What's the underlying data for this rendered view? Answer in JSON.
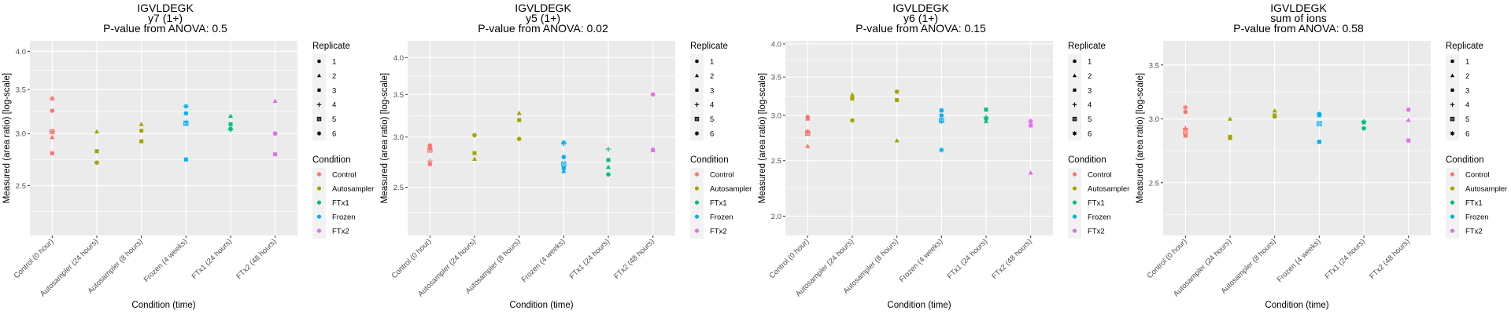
{
  "chart_data": [
    {
      "type": "scatter",
      "title": "IGVLDEGK",
      "subtitle": "y7 (1+)",
      "pvalue_text": "P-value from ANOVA: 0.5",
      "xlabel": "Condition (time)",
      "ylabel": "Measured (area ratio) [log-scale]",
      "ylim": [
        2.1,
        4.15
      ],
      "yticks": [
        "2.5",
        "3.0",
        "3.5",
        "4.0"
      ],
      "ytick_values": [
        2.5,
        3.0,
        3.5,
        4.0
      ],
      "grid": true,
      "categories": [
        "Control (0 hour)",
        "Autosampler (24 hours)",
        "Autosampler (8 hours)",
        "Frozen (4 weeks)",
        "FTx1 (24 hours)",
        "FTx2 (48 hours)"
      ],
      "points": [
        {
          "x": 0,
          "y": 3.25,
          "replicate": 1,
          "condition": "Control"
        },
        {
          "x": 0,
          "y": 2.96,
          "replicate": 2,
          "condition": "Control"
        },
        {
          "x": 0,
          "y": 2.8,
          "replicate": 3,
          "condition": "Control"
        },
        {
          "x": 0,
          "y": 3.02,
          "replicate": 4,
          "condition": "Control"
        },
        {
          "x": 0,
          "y": 3.02,
          "replicate": 5,
          "condition": "Control"
        },
        {
          "x": 0,
          "y": 3.39,
          "replicate": 6,
          "condition": "Control"
        },
        {
          "x": 1,
          "y": 2.71,
          "replicate": 1,
          "condition": "Autosampler"
        },
        {
          "x": 1,
          "y": 3.02,
          "replicate": 2,
          "condition": "Autosampler"
        },
        {
          "x": 1,
          "y": 2.82,
          "replicate": 3,
          "condition": "Autosampler"
        },
        {
          "x": 2,
          "y": 3.03,
          "replicate": 1,
          "condition": "Autosampler"
        },
        {
          "x": 2,
          "y": 3.1,
          "replicate": 2,
          "condition": "Autosampler"
        },
        {
          "x": 2,
          "y": 2.92,
          "replicate": 3,
          "condition": "Autosampler"
        },
        {
          "x": 3,
          "y": 3.22,
          "replicate": 1,
          "condition": "Frozen"
        },
        {
          "x": 3,
          "y": 2.74,
          "replicate": 3,
          "condition": "Frozen"
        },
        {
          "x": 3,
          "y": 3.12,
          "replicate": 4,
          "condition": "Frozen"
        },
        {
          "x": 3,
          "y": 3.11,
          "replicate": 5,
          "condition": "Frozen"
        },
        {
          "x": 3,
          "y": 3.3,
          "replicate": 6,
          "condition": "Frozen"
        },
        {
          "x": 4,
          "y": 3.05,
          "replicate": 1,
          "condition": "FTx1"
        },
        {
          "x": 4,
          "y": 3.19,
          "replicate": 2,
          "condition": "FTx1"
        },
        {
          "x": 4,
          "y": 3.1,
          "replicate": 3,
          "condition": "FTx1"
        },
        {
          "x": 4,
          "y": 3.04,
          "replicate": 4,
          "condition": "FTx1"
        },
        {
          "x": 5,
          "y": 3.0,
          "replicate": 1,
          "condition": "FTx2"
        },
        {
          "x": 5,
          "y": 3.36,
          "replicate": 2,
          "condition": "FTx2"
        },
        {
          "x": 5,
          "y": 2.79,
          "replicate": 3,
          "condition": "FTx2"
        }
      ]
    },
    {
      "type": "scatter",
      "title": "IGVLDEGK",
      "subtitle": "y5 (1+)",
      "pvalue_text": "P-value from ANOVA: 0.02",
      "xlabel": "Condition (time)",
      "ylabel": "Measured (area ratio) [log-scale]",
      "ylim": [
        2.1,
        4.25
      ],
      "yticks": [
        "2.5",
        "3.0",
        "3.5",
        "4.0"
      ],
      "ytick_values": [
        2.5,
        3.0,
        3.5,
        4.0
      ],
      "grid": true,
      "categories": [
        "Control (0 hour)",
        "Autosampler (24 hours)",
        "Autosampler (8 hours)",
        "Frozen (4 weeks)",
        "FTx1 (24 hours)",
        "FTx2 (48 hours)"
      ],
      "points": [
        {
          "x": 0,
          "y": 2.91,
          "replicate": 1,
          "condition": "Control"
        },
        {
          "x": 0,
          "y": 2.89,
          "replicate": 2,
          "condition": "Control"
        },
        {
          "x": 0,
          "y": 2.72,
          "replicate": 3,
          "condition": "Control"
        },
        {
          "x": 0,
          "y": 2.75,
          "replicate": 4,
          "condition": "Control"
        },
        {
          "x": 0,
          "y": 2.86,
          "replicate": 5,
          "condition": "Control"
        },
        {
          "x": 0,
          "y": 2.88,
          "replicate": 6,
          "condition": "Control"
        },
        {
          "x": 1,
          "y": 3.02,
          "replicate": 1,
          "condition": "Autosampler"
        },
        {
          "x": 1,
          "y": 2.77,
          "replicate": 2,
          "condition": "Autosampler"
        },
        {
          "x": 1,
          "y": 2.83,
          "replicate": 3,
          "condition": "Autosampler"
        },
        {
          "x": 2,
          "y": 2.98,
          "replicate": 1,
          "condition": "Autosampler"
        },
        {
          "x": 2,
          "y": 3.27,
          "replicate": 2,
          "condition": "Autosampler"
        },
        {
          "x": 2,
          "y": 3.19,
          "replicate": 3,
          "condition": "Autosampler"
        },
        {
          "x": 3,
          "y": 2.79,
          "replicate": 1,
          "condition": "Frozen"
        },
        {
          "x": 3,
          "y": 2.65,
          "replicate": 2,
          "condition": "Frozen"
        },
        {
          "x": 3,
          "y": 2.68,
          "replicate": 3,
          "condition": "Frozen"
        },
        {
          "x": 3,
          "y": 2.93,
          "replicate": 4,
          "condition": "Frozen"
        },
        {
          "x": 3,
          "y": 2.72,
          "replicate": 5,
          "condition": "Frozen"
        },
        {
          "x": 3,
          "y": 2.94,
          "replicate": 6,
          "condition": "Frozen"
        },
        {
          "x": 4,
          "y": 2.62,
          "replicate": 1,
          "condition": "FTx1"
        },
        {
          "x": 4,
          "y": 2.69,
          "replicate": 2,
          "condition": "FTx1"
        },
        {
          "x": 4,
          "y": 2.76,
          "replicate": 3,
          "condition": "FTx1"
        },
        {
          "x": 4,
          "y": 2.87,
          "replicate": 4,
          "condition": "FTx1"
        },
        {
          "x": 5,
          "y": 3.5,
          "replicate": 1,
          "condition": "FTx2"
        },
        {
          "x": 5,
          "y": 2.87,
          "replicate": 2,
          "condition": "FTx2"
        },
        {
          "x": 5,
          "y": 2.86,
          "replicate": 3,
          "condition": "FTx2"
        }
      ]
    },
    {
      "type": "scatter",
      "title": "IGVLDEGK",
      "subtitle": "y6 (1+)",
      "pvalue_text": "P-value from ANOVA: 0.15",
      "xlabel": "Condition (time)",
      "ylabel": "Measured (area ratio) [log-scale]",
      "ylim": [
        1.85,
        4.05
      ],
      "yticks": [
        "2.0",
        "2.5",
        "3.0",
        "3.5",
        "4.0"
      ],
      "ytick_values": [
        2.0,
        2.5,
        3.0,
        3.5,
        4.0
      ],
      "grid": true,
      "categories": [
        "Control (0 hour)",
        "Autosampler (24 hours)",
        "Autosampler (8 hours)",
        "Frozen (4 weeks)",
        "FTx1 (24 hours)",
        "FTx2 (48 hours)"
      ],
      "points": [
        {
          "x": 0,
          "y": 2.98,
          "replicate": 1,
          "condition": "Control"
        },
        {
          "x": 0,
          "y": 2.65,
          "replicate": 2,
          "condition": "Control"
        },
        {
          "x": 0,
          "y": 2.96,
          "replicate": 3,
          "condition": "Control"
        },
        {
          "x": 0,
          "y": 2.8,
          "replicate": 4,
          "condition": "Control"
        },
        {
          "x": 0,
          "y": 2.79,
          "replicate": 5,
          "condition": "Control"
        },
        {
          "x": 0,
          "y": 2.81,
          "replicate": 6,
          "condition": "Control"
        },
        {
          "x": 1,
          "y": 2.94,
          "replicate": 1,
          "condition": "Autosampler"
        },
        {
          "x": 1,
          "y": 3.26,
          "replicate": 2,
          "condition": "Autosampler"
        },
        {
          "x": 1,
          "y": 3.21,
          "replicate": 3,
          "condition": "Autosampler"
        },
        {
          "x": 2,
          "y": 3.3,
          "replicate": 1,
          "condition": "Autosampler"
        },
        {
          "x": 2,
          "y": 2.71,
          "replicate": 2,
          "condition": "Autosampler"
        },
        {
          "x": 2,
          "y": 3.19,
          "replicate": 3,
          "condition": "Autosampler"
        },
        {
          "x": 3,
          "y": 3.0,
          "replicate": 1,
          "condition": "Frozen"
        },
        {
          "x": 3,
          "y": 3.06,
          "replicate": 3,
          "condition": "Frozen"
        },
        {
          "x": 3,
          "y": 2.93,
          "replicate": 4,
          "condition": "Frozen"
        },
        {
          "x": 3,
          "y": 2.94,
          "replicate": 5,
          "condition": "Frozen"
        },
        {
          "x": 3,
          "y": 2.61,
          "replicate": 6,
          "condition": "Frozen"
        },
        {
          "x": 4,
          "y": 2.96,
          "replicate": 1,
          "condition": "FTx1"
        },
        {
          "x": 4,
          "y": 2.93,
          "replicate": 2,
          "condition": "FTx1"
        },
        {
          "x": 4,
          "y": 3.07,
          "replicate": 3,
          "condition": "FTx1"
        },
        {
          "x": 4,
          "y": 2.98,
          "replicate": 4,
          "condition": "FTx1"
        },
        {
          "x": 5,
          "y": 2.93,
          "replicate": 1,
          "condition": "FTx2"
        },
        {
          "x": 5,
          "y": 2.38,
          "replicate": 2,
          "condition": "FTx2"
        },
        {
          "x": 5,
          "y": 2.88,
          "replicate": 3,
          "condition": "FTx2"
        }
      ]
    },
    {
      "type": "scatter",
      "title": "IGVLDEGK",
      "subtitle": "sum of ions",
      "pvalue_text": "P-value from ANOVA: 0.58",
      "xlabel": "Condition (time)",
      "ylabel": "Measured (area ratio) [log-scale]",
      "ylim": [
        2.15,
        3.75
      ],
      "yticks": [
        "2.5",
        "3.0",
        "3.5"
      ],
      "ytick_values": [
        2.5,
        3.0,
        3.5
      ],
      "grid": true,
      "categories": [
        "Control (0 hour)",
        "Autosampler (24 hours)",
        "Autosampler (8 hours)",
        "Frozen (4 weeks)",
        "FTx1 (24 hours)",
        "FTx2 (48 hours)"
      ],
      "points": [
        {
          "x": 0,
          "y": 3.06,
          "replicate": 1,
          "condition": "Control"
        },
        {
          "x": 0,
          "y": 2.92,
          "replicate": 2,
          "condition": "Control"
        },
        {
          "x": 0,
          "y": 2.86,
          "replicate": 3,
          "condition": "Control"
        },
        {
          "x": 0,
          "y": 2.92,
          "replicate": 4,
          "condition": "Control"
        },
        {
          "x": 0,
          "y": 2.89,
          "replicate": 5,
          "condition": "Control"
        },
        {
          "x": 0,
          "y": 3.1,
          "replicate": 6,
          "condition": "Control"
        },
        {
          "x": 1,
          "y": 2.84,
          "replicate": 1,
          "condition": "Autosampler"
        },
        {
          "x": 1,
          "y": 3.0,
          "replicate": 2,
          "condition": "Autosampler"
        },
        {
          "x": 1,
          "y": 2.85,
          "replicate": 3,
          "condition": "Autosampler"
        },
        {
          "x": 2,
          "y": 3.02,
          "replicate": 1,
          "condition": "Autosampler"
        },
        {
          "x": 2,
          "y": 3.07,
          "replicate": 2,
          "condition": "Autosampler"
        },
        {
          "x": 2,
          "y": 3.03,
          "replicate": 3,
          "condition": "Autosampler"
        },
        {
          "x": 3,
          "y": 3.04,
          "replicate": 1,
          "condition": "Frozen"
        },
        {
          "x": 3,
          "y": 3.03,
          "replicate": 2,
          "condition": "Frozen"
        },
        {
          "x": 3,
          "y": 2.81,
          "replicate": 3,
          "condition": "Frozen"
        },
        {
          "x": 3,
          "y": 2.96,
          "replicate": 5,
          "condition": "Frozen"
        },
        {
          "x": 3,
          "y": 3.04,
          "replicate": 6,
          "condition": "Frozen"
        },
        {
          "x": 4,
          "y": 2.92,
          "replicate": 1,
          "condition": "FTx1"
        },
        {
          "x": 4,
          "y": 2.97,
          "replicate": 3,
          "condition": "FTx1"
        },
        {
          "x": 4,
          "y": 2.98,
          "replicate": 4,
          "condition": "FTx1"
        },
        {
          "x": 5,
          "y": 3.08,
          "replicate": 1,
          "condition": "FTx2"
        },
        {
          "x": 5,
          "y": 2.99,
          "replicate": 2,
          "condition": "FTx2"
        },
        {
          "x": 5,
          "y": 2.82,
          "replicate": 3,
          "condition": "FTx2"
        }
      ]
    }
  ],
  "legend": {
    "replicate_title": "Replicate",
    "replicates": [
      {
        "label": "1",
        "shape": "circle"
      },
      {
        "label": "2",
        "shape": "triangle"
      },
      {
        "label": "3",
        "shape": "square"
      },
      {
        "label": "4",
        "shape": "plus"
      },
      {
        "label": "5",
        "shape": "boxed-x-square"
      },
      {
        "label": "6",
        "shape": "asterisk"
      }
    ],
    "condition_title": "Condition",
    "conditions": [
      {
        "label": "Control",
        "color": "#F8766D"
      },
      {
        "label": "Autosampler",
        "color": "#A3A500"
      },
      {
        "label": "FTx1",
        "color": "#00BF7D"
      },
      {
        "label": "Frozen",
        "color": "#00B0F6"
      },
      {
        "label": "FTx2",
        "color": "#E76BF3"
      }
    ]
  }
}
